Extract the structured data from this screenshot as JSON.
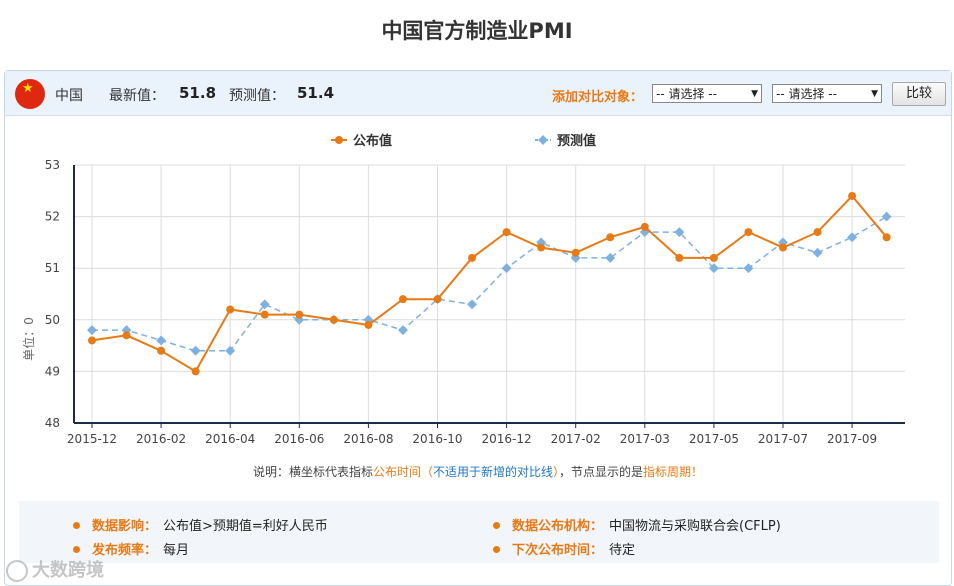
{
  "page": {
    "title": "中国官方制造业PMI"
  },
  "header": {
    "country": "中国",
    "latest_label": "最新值：",
    "latest_value": "51.8",
    "forecast_label": "预测值：",
    "forecast_value": "51.4",
    "compare_label": "添加对比对象：",
    "select1": "-- 请选择 --",
    "select2": "-- 请选择 --",
    "compare_button": "比较"
  },
  "chart_data": {
    "type": "line",
    "ylabel": "单位：0",
    "ylim": [
      48,
      53
    ],
    "yticks": [
      "53",
      "52",
      "51",
      "50",
      "49",
      "48"
    ],
    "xtick_labels": [
      "2015-12",
      "2016-02",
      "2016-04",
      "2016-06",
      "2016-08",
      "2016-10",
      "2016-12",
      "2017-02",
      "2017-03",
      "2017-05",
      "2017-07",
      "2017-09"
    ],
    "x": [
      "2015-12",
      "2016-01",
      "2016-02",
      "2016-03",
      "2016-04",
      "2016-05",
      "2016-06",
      "2016-07",
      "2016-08",
      "2016-09",
      "2016-10",
      "2016-11",
      "2016-12",
      "2017-01",
      "2017-02",
      "2017-02",
      "2017-03",
      "2017-04",
      "2017-05",
      "2017-06",
      "2017-07",
      "2017-08",
      "2017-09",
      "2017-10"
    ],
    "series": [
      {
        "name": "公布值",
        "color": "#e87a16",
        "style": "solid",
        "values": [
          49.6,
          49.7,
          49.4,
          49.0,
          50.2,
          50.1,
          50.1,
          50.0,
          49.9,
          50.4,
          50.4,
          51.2,
          51.7,
          51.4,
          51.3,
          51.6,
          51.8,
          51.2,
          51.2,
          51.7,
          51.4,
          51.7,
          52.4,
          51.6
        ]
      },
      {
        "name": "预测值",
        "color": "#7fb1e0",
        "style": "dashed",
        "values": [
          49.8,
          49.8,
          49.6,
          49.4,
          49.4,
          50.3,
          50.0,
          50.0,
          50.0,
          49.8,
          50.4,
          50.3,
          51.0,
          51.5,
          51.2,
          51.2,
          51.7,
          51.7,
          51.0,
          51.0,
          51.5,
          51.3,
          51.6,
          52.0
        ]
      }
    ],
    "grid": true,
    "legend": "top-center"
  },
  "note": {
    "prefix": "说明：横坐标代表指标",
    "publish_time": "公布时间",
    "paren_open": "（",
    "not_applicable": "不适用于新增的对比线",
    "paren_close": "）",
    "mid": "，节点显示的是",
    "period": "指标周期",
    "end": "！"
  },
  "info": {
    "impact_label": "数据影响：",
    "impact_value": "公布值>预期值=利好人民币",
    "agency_label": "数据公布机构：",
    "agency_value": "中国物流与采购联合会(CFLP)",
    "frequency_label": "发布频率：",
    "frequency_value": "每月",
    "next_label": "下次公布时间：",
    "next_value": "待定"
  },
  "watermark": {
    "text": "大数跨境"
  }
}
